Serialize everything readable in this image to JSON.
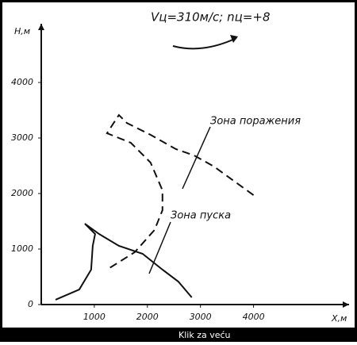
{
  "chart_data": {
    "type": "line",
    "title": "Vц=310м/с; nц=+8",
    "x_label": "X,м",
    "y_label": "H,м",
    "xlim": [
      0,
      5800
    ],
    "ylim": [
      0,
      5000
    ],
    "xticks": [
      1000,
      2000,
      3000,
      4000
    ],
    "yticks": [
      0,
      1000,
      2000,
      3000,
      4000
    ],
    "series": [
      {
        "name": "Зона поражения",
        "color": "#111111",
        "dashed": true,
        "x": [
          4000,
          3254,
          2881,
          2537,
          2060,
          1612,
          1463,
          1239,
          1687,
          2060,
          2284,
          2284,
          2134,
          1761,
          1284
        ],
        "values": [
          1971,
          2486,
          2686,
          2800,
          3057,
          3271,
          3414,
          3086,
          2914,
          2557,
          2057,
          1700,
          1343,
          943,
          657
        ]
      },
      {
        "name": "Зона пуска",
        "color": "#111111",
        "dashed": false,
        "x": [
          269,
          716,
          940,
          970,
          1015,
          821,
          1090,
          1463,
          1910,
          2284,
          2582,
          2836
        ],
        "values": [
          86,
          271,
          629,
          1057,
          1271,
          1457,
          1271,
          1057,
          914,
          629,
          414,
          129
        ]
      }
    ]
  },
  "caption": "Klik za veću"
}
